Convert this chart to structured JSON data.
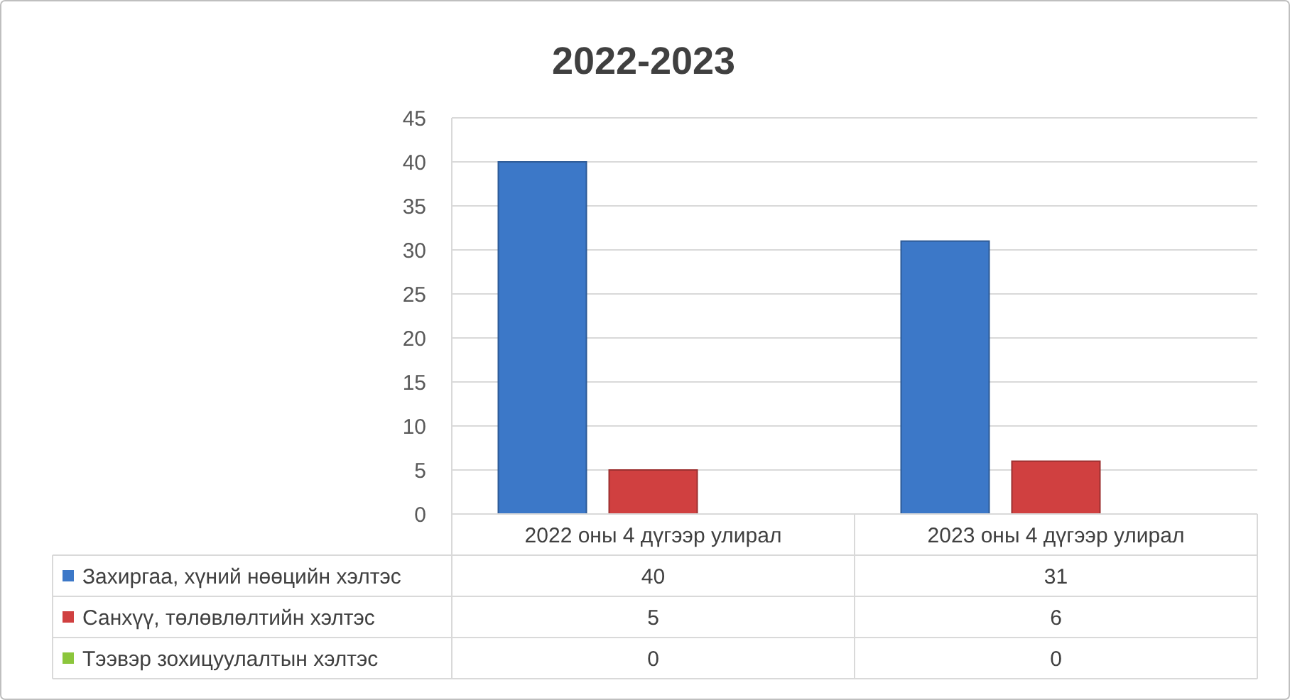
{
  "chart_data": {
    "type": "bar",
    "title": "2022-2023",
    "categories": [
      "2022 оны 4 дүгээр улирал",
      "2023 оны 4 дүгээр улирал"
    ],
    "series": [
      {
        "name": "Захиргаа, хүний нөөцийн хэлтэс",
        "color": "#3c78c8",
        "values": [
          40,
          31
        ]
      },
      {
        "name": "Санхүү, төлөвлөлтийн хэлтэс",
        "color": "#d04040",
        "values": [
          5,
          6
        ]
      },
      {
        "name": "Тээвэр зохицуулалтын хэлтэс",
        "color": "#8cc63c",
        "values": [
          0,
          0
        ]
      }
    ],
    "ylim": [
      0,
      45
    ],
    "yticks": [
      0,
      5,
      10,
      15,
      20,
      25,
      30,
      35,
      40,
      45
    ],
    "grid": "y",
    "legend": "bottom",
    "data_labels": true
  }
}
